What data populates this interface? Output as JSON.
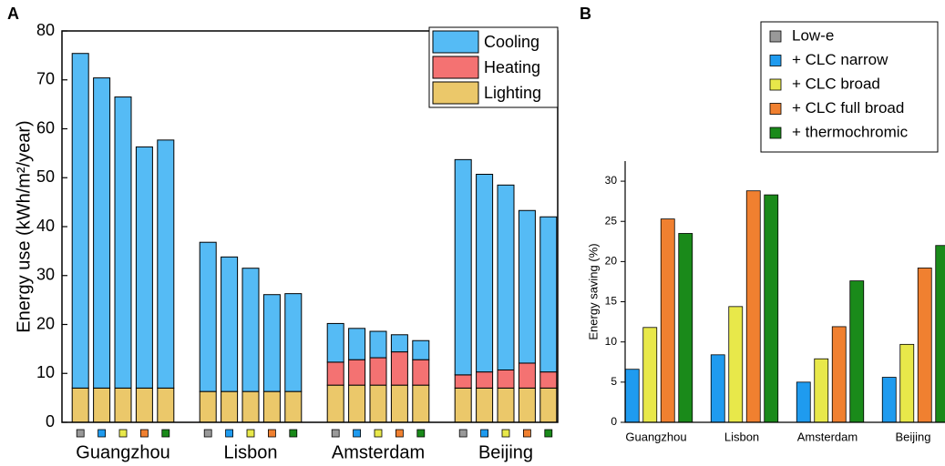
{
  "chart_data": [
    {
      "type": "bar",
      "stacked": true,
      "panel_label": "A",
      "y_label": "Energy use (kWh/m²/year)",
      "groups": [
        "Guangzhou",
        "Lisbon",
        "Amsterdam",
        "Beijing"
      ],
      "ylim": [
        0,
        80
      ],
      "yticks": [
        0,
        10,
        20,
        30,
        40,
        50,
        60,
        70,
        80
      ],
      "legend": "upper right",
      "series": [
        {
          "name": "Cooling",
          "color": "#55bbf5",
          "values": [
            68.4,
            63.4,
            59.5,
            49.3,
            50.7,
            30.5,
            27.5,
            25.2,
            19.8,
            20.0,
            7.9,
            6.4,
            5.4,
            3.5,
            3.9,
            44.0,
            40.4,
            37.8,
            31.2,
            31.7
          ]
        },
        {
          "name": "Heating",
          "color": "#f47272",
          "values": [
            0,
            0,
            0,
            0,
            0,
            0,
            0,
            0,
            0,
            0,
            4.7,
            5.2,
            5.6,
            6.8,
            5.2,
            2.7,
            3.3,
            3.7,
            5.1,
            3.3
          ]
        },
        {
          "name": "Lighting",
          "color": "#ebc86a",
          "values": [
            7.0,
            7.0,
            7.0,
            7.0,
            7.0,
            6.3,
            6.3,
            6.3,
            6.3,
            6.3,
            7.6,
            7.6,
            7.6,
            7.6,
            7.6,
            7.0,
            7.0,
            7.0,
            7.0,
            7.0
          ]
        }
      ]
    },
    {
      "type": "bar",
      "panel_label": "B",
      "y_label": "Energy saving (%)",
      "categories": [
        "Guangzhou",
        "Lisbon",
        "Amsterdam",
        "Beijing"
      ],
      "ylim": [
        0,
        32.5
      ],
      "yticks": [
        0,
        5,
        10,
        15,
        20,
        25,
        30
      ],
      "series": [
        {
          "name": "Low-e",
          "color": "#999999"
        },
        {
          "name": "+ CLC narrow",
          "color": "#1f9bef",
          "values": [
            6.6,
            8.4,
            5.0,
            5.6
          ]
        },
        {
          "name": "+ CLC broad",
          "color": "#e8e84a",
          "values": [
            11.8,
            14.4,
            7.9,
            9.7
          ]
        },
        {
          "name": "+ CLC full broad",
          "color": "#f08030",
          "values": [
            25.3,
            28.8,
            11.9,
            19.2
          ]
        },
        {
          "name": "+ thermochromic",
          "color": "#1a8a1a",
          "values": [
            23.5,
            28.3,
            17.6,
            22.0
          ]
        }
      ]
    }
  ]
}
